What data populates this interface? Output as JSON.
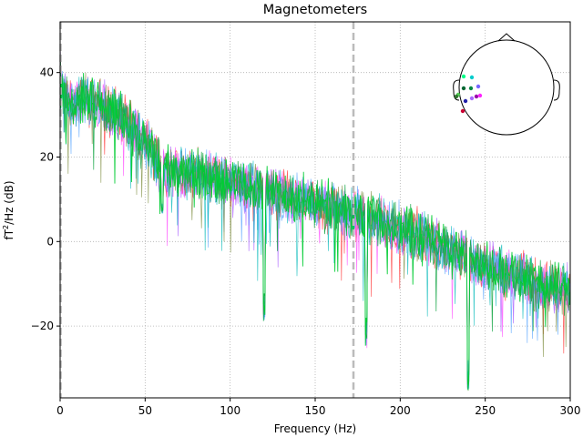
{
  "chart_data": {
    "type": "line",
    "title": "Magnetometers",
    "xlabel": "Frequency (Hz)",
    "ylabel_base": "fT",
    "ylabel_sup": "2",
    "ylabel_rest": "/Hz (dB)",
    "xlim": [
      0,
      300
    ],
    "ylim": [
      -37,
      52
    ],
    "xticks": [
      0,
      50,
      100,
      150,
      200,
      250,
      300
    ],
    "xtick_labels": [
      "0",
      "50",
      "100",
      "150",
      "200",
      "250",
      "300"
    ],
    "yticks": [
      -20,
      0,
      20,
      40
    ],
    "ytick_labels": [
      "−20",
      "0",
      "20",
      "40"
    ],
    "grid": true,
    "grid_style": "dotted",
    "vlines": [
      {
        "x": 0.3,
        "style": "dashed",
        "color": "#bbbbbb"
      },
      {
        "x": 172.5,
        "style": "dashed",
        "color": "#bbbbbb"
      }
    ],
    "trend_anchors": {
      "x": [
        0,
        5,
        15,
        30,
        50,
        60,
        80,
        100,
        120,
        140,
        160,
        180,
        200,
        220,
        240,
        260,
        280,
        300
      ],
      "y": [
        38,
        33,
        34,
        31,
        24,
        17,
        16,
        14,
        12,
        10,
        8,
        6,
        3,
        0,
        -4,
        -7,
        -10,
        -11
      ]
    },
    "line_notches": [
      {
        "x": 60,
        "depth": 10
      },
      {
        "x": 120,
        "depth": 30
      },
      {
        "x": 180,
        "depth": 30
      },
      {
        "x": 240,
        "depth": 30
      }
    ],
    "series": [
      {
        "color": "#ff2a2a",
        "seed": 11
      },
      {
        "color": "#a050ff",
        "seed": 23
      },
      {
        "color": "#ff44ff",
        "seed": 37
      },
      {
        "color": "#4fa0ff",
        "seed": 41
      },
      {
        "color": "#7a8a3a",
        "seed": 53
      },
      {
        "color": "#00b8b8",
        "seed": 67
      },
      {
        "color": "#1aa84a",
        "seed": 79
      },
      {
        "color": "#00cc33",
        "seed": 97
      }
    ],
    "legend": {
      "type": "sensor-topomap",
      "placement": "top-right",
      "sensor_colors": [
        "#00ff88",
        "#00cccc",
        "#006633",
        "#008844",
        "#55cc55",
        "#7766ff",
        "#2222aa",
        "#aa66ff",
        "#9900aa",
        "#ff22ff",
        "#cc0033",
        "#337733"
      ]
    }
  }
}
